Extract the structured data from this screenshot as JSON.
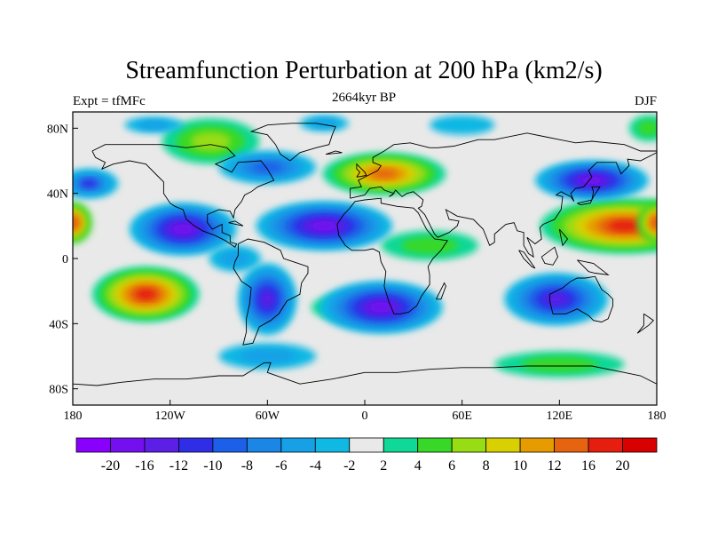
{
  "title": "Streamfunction Perturbation at 200 hPa (km2/s)",
  "left_label": "Expt = tfMFc",
  "center_label": "2664kyr BP",
  "right_label": "DJF",
  "map": {
    "lon_ticks": [
      "180",
      "120W",
      "60W",
      "0",
      "60E",
      "120E",
      "180"
    ],
    "lat_ticks": [
      "80N",
      "40N",
      "0",
      "40S",
      "80S"
    ],
    "lon_range": [
      -180,
      180
    ],
    "lat_range": [
      -90,
      90
    ]
  },
  "colorbar": {
    "labels": [
      "-20",
      "-16",
      "-12",
      "-10",
      "-8",
      "-6",
      "-4",
      "-2",
      "2",
      "4",
      "6",
      "8",
      "10",
      "12",
      "16",
      "20"
    ],
    "colors": [
      "#8a00ff",
      "#7410ef",
      "#5b1fe6",
      "#2f2ee6",
      "#1c5fe8",
      "#1c86e6",
      "#16a0e6",
      "#10b8e4",
      "#e9e9e9",
      "#10d896",
      "#38d828",
      "#98dc14",
      "#d8d000",
      "#e69c00",
      "#e66410",
      "#e61e10",
      "#d80000"
    ]
  },
  "colors": {
    "background": "#e9e9e9",
    "frame": "#000000",
    "coastline": "#000000"
  }
}
